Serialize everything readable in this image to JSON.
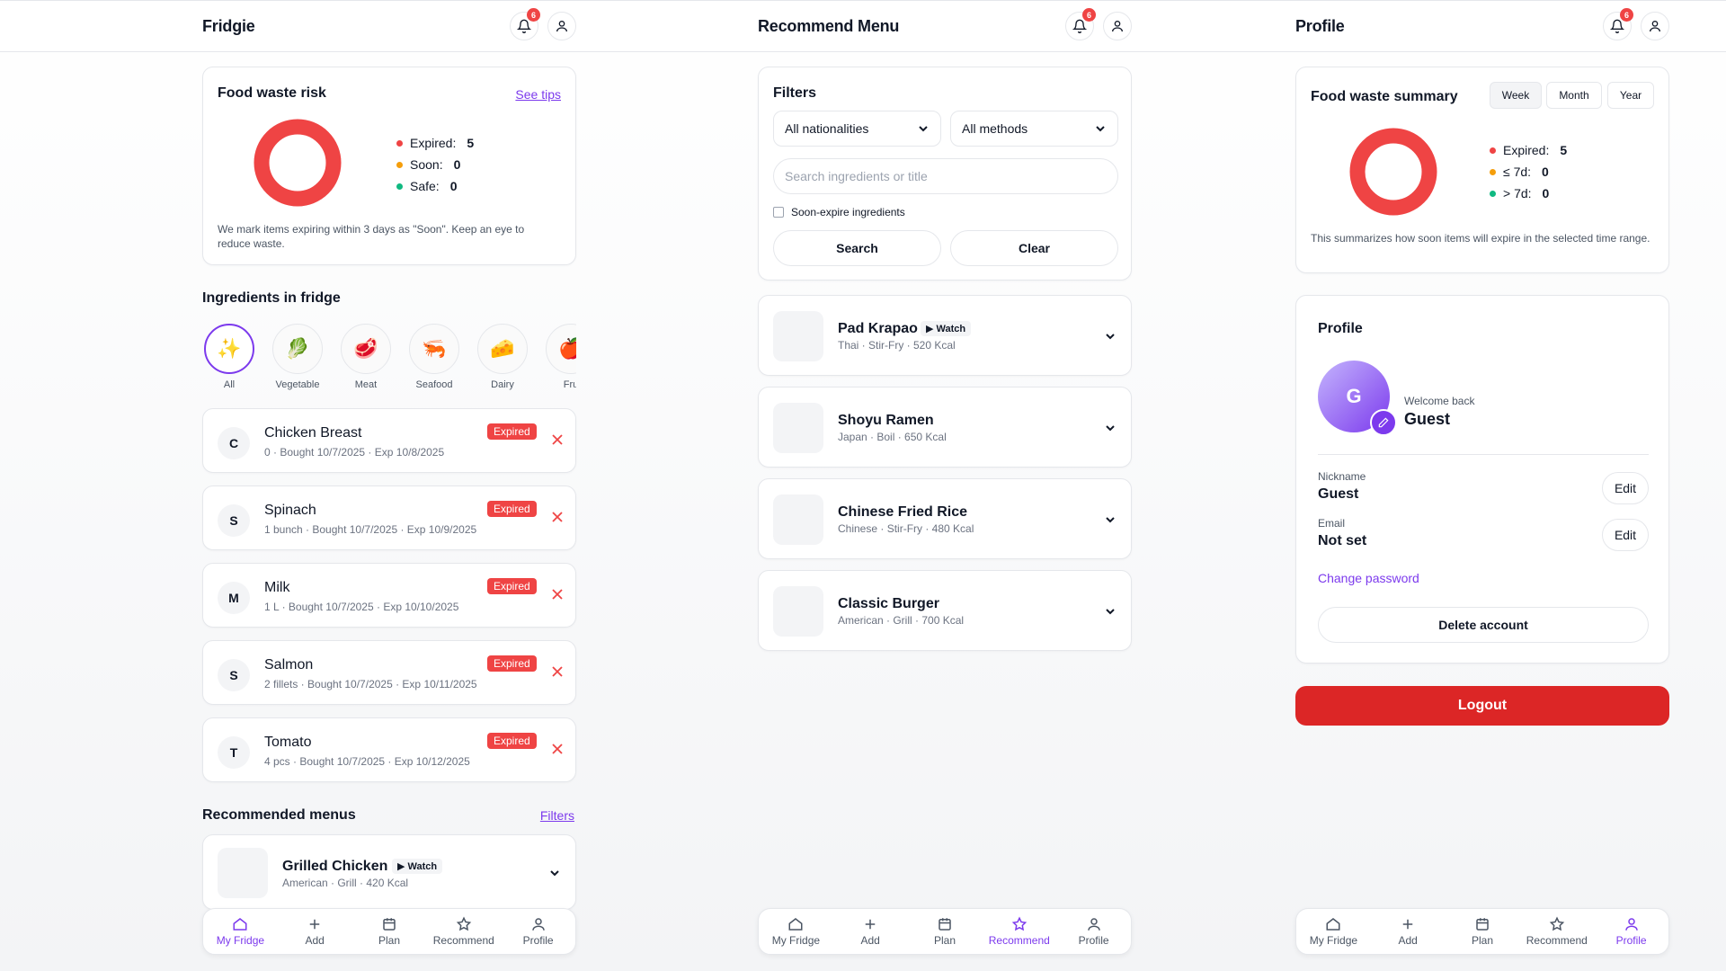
{
  "badge_count": "6",
  "fridge": {
    "title": "Fridgie",
    "waste": {
      "title": "Food waste risk",
      "link": "See tips",
      "legend": [
        {
          "label": "Expired:",
          "value": "5",
          "color": "#ef4444"
        },
        {
          "label": "Soon:",
          "value": "0",
          "color": "#f59e0b"
        },
        {
          "label": "Safe:",
          "value": "0",
          "color": "#10b981"
        }
      ],
      "hint": "We mark items expiring within 3 days as \"Soon\". Keep an eye to reduce waste."
    },
    "ingredients_title": "Ingredients in fridge",
    "categories": [
      {
        "label": "All",
        "emoji": "✨"
      },
      {
        "label": "Vegetable",
        "emoji": "🥬"
      },
      {
        "label": "Meat",
        "emoji": "🥩"
      },
      {
        "label": "Seafood",
        "emoji": "🦐"
      },
      {
        "label": "Dairy",
        "emoji": "🧀"
      },
      {
        "label": "Fru",
        "emoji": "🍎"
      }
    ],
    "items": [
      {
        "initial": "C",
        "name": "Chicken Breast",
        "meta": "0 · Bought 10/7/2025 · Exp 10/8/2025",
        "status": "Expired"
      },
      {
        "initial": "S",
        "name": "Spinach",
        "meta": "1 bunch · Bought 10/7/2025 · Exp 10/9/2025",
        "status": "Expired"
      },
      {
        "initial": "M",
        "name": "Milk",
        "meta": "1 L · Bought 10/7/2025 · Exp 10/10/2025",
        "status": "Expired"
      },
      {
        "initial": "S",
        "name": "Salmon",
        "meta": "2 fillets · Bought 10/7/2025 · Exp 10/11/2025",
        "status": "Expired"
      },
      {
        "initial": "T",
        "name": "Tomato",
        "meta": "4 pcs · Bought 10/7/2025 · Exp 10/12/2025",
        "status": "Expired"
      }
    ],
    "recommended_title": "Recommended menus",
    "filters_link": "Filters",
    "menu": {
      "name": "Grilled Chicken",
      "watch": "▶ Watch",
      "meta": "American · Grill · 420 Kcal"
    }
  },
  "recommend": {
    "title": "Recommend Menu",
    "filters_title": "Filters",
    "nationality": "All nationalities",
    "method": "All methods",
    "search_placeholder": "Search ingredients or title",
    "soon_label": "Soon-expire ingredients",
    "search_btn": "Search",
    "clear_btn": "Clear",
    "menus": [
      {
        "name": "Pad Krapao",
        "watch": "▶ Watch",
        "meta": "Thai · Stir-Fry · 520 Kcal"
      },
      {
        "name": "Shoyu Ramen",
        "watch": "",
        "meta": "Japan · Boil · 650 Kcal"
      },
      {
        "name": "Chinese Fried Rice",
        "watch": "",
        "meta": "Chinese · Stir-Fry · 480 Kcal"
      },
      {
        "name": "Classic Burger",
        "watch": "",
        "meta": "American · Grill · 700 Kcal"
      }
    ]
  },
  "profile": {
    "title": "Profile",
    "summary": {
      "title": "Food waste summary",
      "ranges": [
        "Week",
        "Month",
        "Year"
      ],
      "active_range": "Week",
      "legend": [
        {
          "label": "Expired:",
          "value": "5",
          "color": "#ef4444"
        },
        {
          "label": "≤ 7d:",
          "value": "0",
          "color": "#f59e0b"
        },
        {
          "label": "> 7d:",
          "value": "0",
          "color": "#10b981"
        }
      ],
      "hint": "This summarizes how soon items will expire in the selected time range."
    },
    "card_title": "Profile",
    "avatar_letter": "G",
    "welcome": "Welcome back",
    "name": "Guest",
    "nickname_label": "Nickname",
    "nickname_value": "Guest",
    "email_label": "Email",
    "email_value": "Not set",
    "edit_label": "Edit",
    "change_password": "Change password",
    "delete_account": "Delete account",
    "logout": "Logout"
  },
  "nav": [
    "My Fridge",
    "Add",
    "Plan",
    "Recommend",
    "Profile"
  ],
  "colors": {
    "accent": "#7c3aed",
    "danger": "#ef4444",
    "logout": "#dc2626"
  }
}
